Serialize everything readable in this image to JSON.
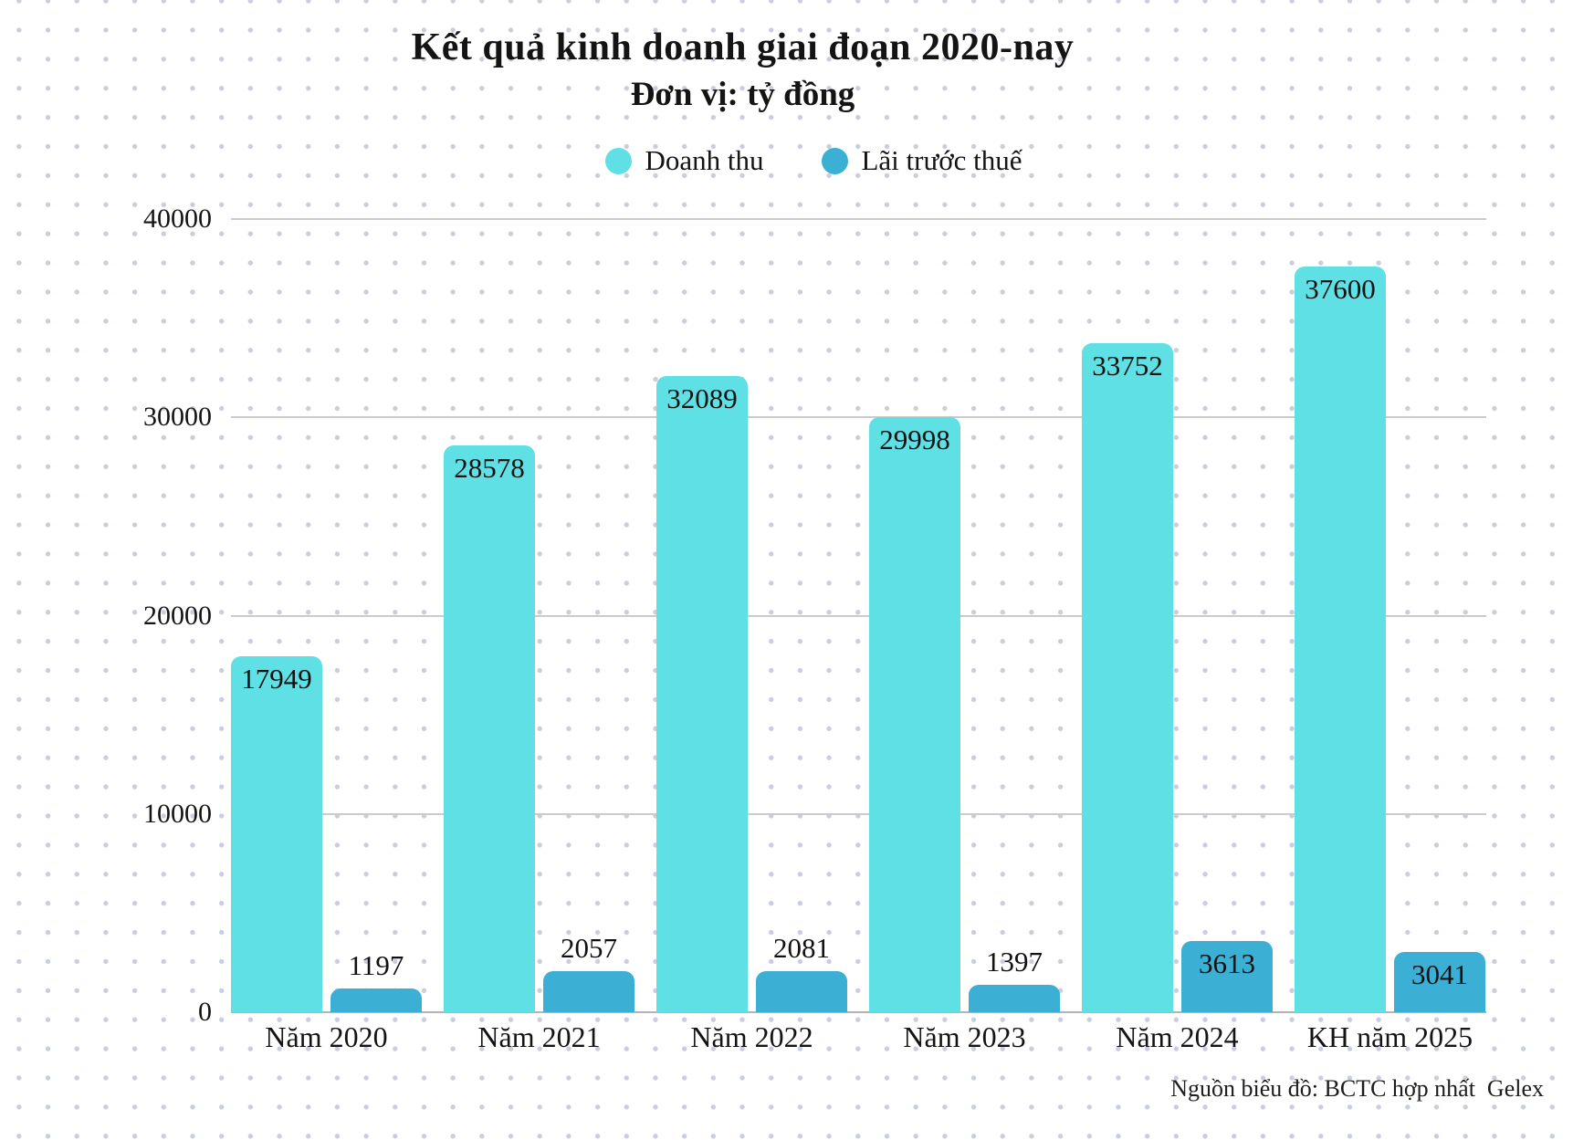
{
  "title": {
    "line1": "Kết quả kinh doanh giai đoạn 2020-nay",
    "line2": "Đơn vị: tỷ đồng"
  },
  "source": "Nguồn biểu đồ: BCTC hợp nhất  Gelex",
  "colors": {
    "revenue": "#5fe0e5",
    "profit": "#3cafd4",
    "gridline": "#cbcbcb",
    "dot_pattern": "#c8cedb",
    "text": "#141414"
  },
  "chart_data": {
    "type": "bar",
    "title": "Kết quả kinh doanh giai đoạn 2020-nay",
    "subtitle": "Đơn vị: tỷ đồng",
    "unit": "tỷ đồng",
    "categories": [
      "Năm 2020",
      "Năm 2021",
      "Năm 2022",
      "Năm 2023",
      "Năm 2024",
      "KH năm 2025"
    ],
    "series": [
      {
        "name": "Doanh thu",
        "color": "#5fe0e5",
        "values": [
          17949,
          28578,
          32089,
          29998,
          33752,
          37600
        ]
      },
      {
        "name": "Lãi trước thuế",
        "color": "#3cafd4",
        "values": [
          1197,
          2057,
          2081,
          1397,
          3613,
          3041
        ]
      }
    ],
    "y_ticks": [
      0,
      10000,
      20000,
      30000,
      40000
    ],
    "ylim": [
      0,
      40000
    ],
    "grid": true,
    "legend_position": "top",
    "source": "Nguồn biểu đồ: BCTC hợp nhất  Gelex"
  }
}
